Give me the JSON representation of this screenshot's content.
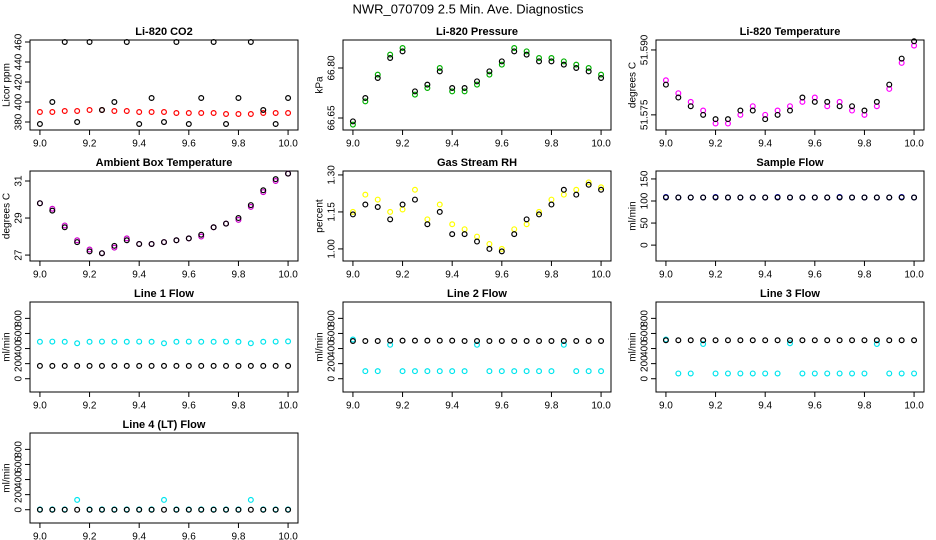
{
  "title": "NWR_070709  2.5 Min. Ave. Diagnostics",
  "chart_data": [
    {
      "type": "scatter",
      "title": "Li-820 CO2",
      "y_label": "Licor ppm",
      "x": [
        9.0,
        9.05,
        9.1,
        9.15,
        9.2,
        9.25,
        9.3,
        9.35,
        9.4,
        9.45,
        9.5,
        9.55,
        9.6,
        9.65,
        9.7,
        9.75,
        9.8,
        9.85,
        9.9,
        9.95,
        10.0
      ],
      "xlim": [
        8.96,
        10.04
      ],
      "xticks": [
        {
          "value": 9,
          "label": "9.0"
        },
        9.2,
        9.4,
        9.6,
        9.8,
        {
          "value": 10,
          "label": "10.0"
        }
      ],
      "ylim": [
        372,
        462
      ],
      "yticks": [
        380,
        400,
        420,
        440,
        460
      ],
      "series": [
        {
          "color": "#ff0000",
          "values": [
            390,
            390,
            391,
            391,
            392,
            392,
            391,
            391,
            390,
            390,
            390,
            389,
            389,
            389,
            389,
            388,
            388,
            388,
            389,
            389,
            389
          ]
        },
        {
          "color": "#000000",
          "values": [
            378,
            400,
            460,
            380,
            460,
            392,
            400,
            460,
            378,
            404,
            380,
            460,
            378,
            404,
            460,
            378,
            404,
            460,
            392,
            378,
            404
          ]
        }
      ]
    },
    {
      "type": "scatter",
      "title": "Li-820 Pressure",
      "y_label": "kPa",
      "x": [
        9.0,
        9.05,
        9.1,
        9.15,
        9.2,
        9.25,
        9.3,
        9.35,
        9.4,
        9.45,
        9.5,
        9.55,
        9.6,
        9.65,
        9.7,
        9.75,
        9.8,
        9.85,
        9.9,
        9.95,
        10.0
      ],
      "xlim": [
        8.96,
        10.04
      ],
      "xticks": [
        {
          "value": 9,
          "label": "9.0"
        },
        9.2,
        9.4,
        9.6,
        9.8,
        {
          "value": 10,
          "label": "10.0"
        }
      ],
      "ylim": [
        66.614,
        66.884
      ],
      "yticks": [
        66.65,
        {
          "value": 66.8,
          "label": "66.80"
        }
      ],
      "series": [
        {
          "color": "#00b000",
          "values": [
            66.63,
            66.7,
            66.78,
            66.84,
            66.86,
            66.72,
            66.74,
            66.8,
            66.73,
            66.73,
            66.75,
            66.78,
            66.81,
            66.86,
            66.85,
            66.83,
            66.83,
            66.82,
            66.81,
            66.8,
            66.78
          ]
        },
        {
          "color": "#000000",
          "values": [
            66.64,
            66.71,
            66.77,
            66.83,
            66.85,
            66.73,
            66.75,
            66.79,
            66.74,
            66.74,
            66.76,
            66.79,
            66.82,
            66.85,
            66.84,
            66.82,
            66.82,
            66.81,
            66.8,
            66.79,
            66.77
          ]
        }
      ]
    },
    {
      "type": "scatter",
      "title": "Li-820 Temperature",
      "y_label": "degrees C",
      "x": [
        9.0,
        9.05,
        9.1,
        9.15,
        9.2,
        9.25,
        9.3,
        9.35,
        9.4,
        9.45,
        9.5,
        9.55,
        9.6,
        9.65,
        9.7,
        9.75,
        9.8,
        9.85,
        9.9,
        9.95,
        10.0
      ],
      "xlim": [
        8.96,
        10.04
      ],
      "xticks": [
        {
          "value": 9,
          "label": "9.0"
        },
        9.2,
        9.4,
        9.6,
        9.8,
        {
          "value": 10,
          "label": "10.0"
        }
      ],
      "ylim": [
        51.5715,
        51.5923
      ],
      "yticks": [
        51.575,
        {
          "value": 51.59,
          "label": "51.590"
        }
      ],
      "series": [
        {
          "color": "#ff00ff",
          "values": [
            51.583,
            51.58,
            51.578,
            51.576,
            51.573,
            51.573,
            51.575,
            51.577,
            51.575,
            51.576,
            51.577,
            51.578,
            51.579,
            51.577,
            51.578,
            51.576,
            51.575,
            51.577,
            51.581,
            51.587,
            51.591
          ]
        },
        {
          "color": "#000000",
          "values": [
            51.582,
            51.579,
            51.577,
            51.575,
            51.574,
            51.574,
            51.576,
            51.576,
            51.574,
            51.575,
            51.576,
            51.579,
            51.578,
            51.578,
            51.577,
            51.577,
            51.576,
            51.578,
            51.582,
            51.588,
            51.592
          ]
        }
      ]
    },
    {
      "type": "scatter",
      "title": "Ambient Box Temperature",
      "y_label": "degrees C",
      "x": [
        9.0,
        9.05,
        9.1,
        9.15,
        9.2,
        9.25,
        9.3,
        9.35,
        9.4,
        9.45,
        9.5,
        9.55,
        9.6,
        9.65,
        9.7,
        9.75,
        9.8,
        9.85,
        9.9,
        9.95,
        10.0
      ],
      "xlim": [
        8.96,
        10.04
      ],
      "xticks": [
        {
          "value": 9,
          "label": "9.0"
        },
        9.2,
        9.4,
        9.6,
        9.8,
        {
          "value": 10,
          "label": "10.0"
        }
      ],
      "ylim": [
        26.68,
        31.54
      ],
      "yticks": [
        27,
        29,
        31
      ],
      "series": [
        {
          "color": "#cc00cc",
          "values": [
            29.8,
            29.5,
            28.6,
            27.8,
            27.3,
            27.1,
            27.4,
            27.9,
            27.6,
            27.6,
            27.7,
            27.8,
            27.9,
            28.0,
            28.5,
            28.7,
            28.9,
            29.6,
            30.4,
            31.0,
            31.4
          ]
        },
        {
          "color": "#000000",
          "values": [
            29.8,
            29.4,
            28.5,
            27.7,
            27.2,
            27.1,
            27.5,
            27.8,
            27.6,
            27.6,
            27.7,
            27.8,
            27.9,
            28.1,
            28.5,
            28.7,
            29.0,
            29.7,
            30.5,
            31.1,
            31.4
          ]
        }
      ]
    },
    {
      "type": "scatter",
      "title": "Gas Stream RH",
      "y_label": "percent",
      "x": [
        9.0,
        9.05,
        9.1,
        9.15,
        9.2,
        9.25,
        9.3,
        9.35,
        9.4,
        9.45,
        9.5,
        9.55,
        9.6,
        9.65,
        9.7,
        9.75,
        9.8,
        9.85,
        9.9,
        9.95,
        10.0
      ],
      "xlim": [
        8.96,
        10.04
      ],
      "xticks": [
        {
          "value": 9,
          "label": "9.0"
        },
        9.2,
        9.4,
        9.6,
        9.8,
        {
          "value": 10,
          "label": "10.0"
        }
      ],
      "ylim": [
        0.951,
        1.316
      ],
      "yticks": [
        {
          "value": 1,
          "label": "1.00"
        },
        1.15,
        {
          "value": 1.3,
          "label": "1.30"
        }
      ],
      "series": [
        {
          "color": "#ffff00",
          "values": [
            1.15,
            1.22,
            1.2,
            1.15,
            1.16,
            1.24,
            1.12,
            1.18,
            1.1,
            1.08,
            1.05,
            1.02,
            1.0,
            1.08,
            1.1,
            1.15,
            1.2,
            1.22,
            1.24,
            1.27,
            1.25
          ]
        },
        {
          "color": "#000000",
          "values": [
            1.14,
            1.18,
            1.17,
            1.12,
            1.18,
            1.2,
            1.1,
            1.15,
            1.06,
            1.06,
            1.03,
            1.0,
            0.99,
            1.06,
            1.12,
            1.14,
            1.18,
            1.24,
            1.22,
            1.26,
            1.24
          ]
        }
      ]
    },
    {
      "type": "scatter",
      "title": "Sample Flow",
      "y_label": "ml/min",
      "x": [
        9.0,
        9.05,
        9.1,
        9.15,
        9.2,
        9.25,
        9.3,
        9.35,
        9.4,
        9.45,
        9.5,
        9.55,
        9.6,
        9.65,
        9.7,
        9.75,
        9.8,
        9.85,
        9.9,
        9.95,
        10.0
      ],
      "xlim": [
        8.96,
        10.04
      ],
      "xticks": [
        {
          "value": 9,
          "label": "9.0"
        },
        9.2,
        9.4,
        9.6,
        9.8,
        {
          "value": 10,
          "label": "10.0"
        }
      ],
      "ylim": [
        -36,
        168
      ],
      "yticks": [
        0,
        50,
        100,
        150
      ],
      "series": [
        {
          "color": "#0000cc",
          "values": [
            109,
            108,
            108,
            108,
            109,
            108,
            108,
            108,
            108,
            109,
            108,
            108,
            108,
            108,
            109,
            108,
            108,
            108,
            108,
            109,
            108
          ]
        },
        {
          "color": "#000000",
          "values": [
            108,
            108,
            108,
            108,
            108,
            108,
            108,
            108,
            108,
            108,
            108,
            108,
            108,
            108,
            108,
            108,
            108,
            108,
            108,
            108,
            108
          ]
        }
      ]
    },
    {
      "type": "scatter",
      "title": "Line 1 Flow",
      "y_label": "ml/min",
      "x": [
        9.0,
        9.05,
        9.1,
        9.15,
        9.2,
        9.25,
        9.3,
        9.35,
        9.4,
        9.45,
        9.5,
        9.55,
        9.6,
        9.65,
        9.7,
        9.75,
        9.8,
        9.85,
        9.9,
        9.95,
        10.0
      ],
      "xlim": [
        8.96,
        10.04
      ],
      "xticks": [
        {
          "value": 9,
          "label": "9.0"
        },
        9.2,
        9.4,
        9.6,
        9.8,
        {
          "value": 10,
          "label": "10.0"
        }
      ],
      "ylim": [
        -176,
        1017
      ],
      "yticks": [
        0,
        200,
        400,
        600,
        800
      ],
      "series": [
        {
          "color": "#00e5ee",
          "values": [
            490,
            492,
            490,
            470,
            490,
            492,
            490,
            490,
            492,
            490,
            470,
            490,
            492,
            490,
            490,
            492,
            490,
            470,
            490,
            492,
            495
          ]
        },
        {
          "color": "#000000",
          "values": [
            170,
            170,
            170,
            170,
            170,
            170,
            170,
            170,
            170,
            170,
            170,
            170,
            170,
            170,
            170,
            170,
            170,
            170,
            170,
            170,
            170
          ]
        }
      ]
    },
    {
      "type": "scatter",
      "title": "Line 2 Flow",
      "y_label": "ml/min",
      "x": [
        9.0,
        9.05,
        9.1,
        9.15,
        9.2,
        9.25,
        9.3,
        9.35,
        9.4,
        9.45,
        9.5,
        9.55,
        9.6,
        9.65,
        9.7,
        9.75,
        9.8,
        9.85,
        9.9,
        9.95,
        10.0
      ],
      "xlim": [
        8.96,
        10.04
      ],
      "xticks": [
        {
          "value": 9,
          "label": "9.0"
        },
        9.2,
        9.4,
        9.6,
        9.8,
        {
          "value": 10,
          "label": "10.0"
        }
      ],
      "ylim": [
        -176,
        1017
      ],
      "yticks": [
        0,
        200,
        400,
        600,
        800
      ],
      "series": [
        {
          "color": "#00e5ee",
          "values": [
            520,
            100,
            100,
            450,
            100,
            100,
            100,
            100,
            100,
            100,
            450,
            100,
            100,
            100,
            100,
            100,
            100,
            450,
            100,
            100,
            100
          ]
        },
        {
          "color": "#000000",
          "values": [
            500,
            500,
            500,
            505,
            505,
            505,
            505,
            505,
            505,
            500,
            500,
            500,
            500,
            500,
            500,
            500,
            500,
            500,
            500,
            500,
            500
          ]
        }
      ]
    },
    {
      "type": "scatter",
      "title": "Line 3 Flow",
      "y_label": "ml/min",
      "x": [
        9.0,
        9.05,
        9.1,
        9.15,
        9.2,
        9.25,
        9.3,
        9.35,
        9.4,
        9.45,
        9.5,
        9.55,
        9.6,
        9.65,
        9.7,
        9.75,
        9.8,
        9.85,
        9.9,
        9.95,
        10.0
      ],
      "xlim": [
        8.96,
        10.04
      ],
      "xticks": [
        {
          "value": 9,
          "label": "9.0"
        },
        9.2,
        9.4,
        9.6,
        9.8,
        {
          "value": 10,
          "label": "10.0"
        }
      ],
      "ylim": [
        -176,
        1017
      ],
      "yticks": [
        0,
        200,
        400,
        600,
        800
      ],
      "series": [
        {
          "color": "#00e5ee",
          "values": [
            520,
            70,
            70,
            460,
            70,
            70,
            70,
            70,
            70,
            70,
            470,
            70,
            70,
            70,
            70,
            70,
            70,
            460,
            70,
            70,
            70
          ]
        },
        {
          "color": "#000000",
          "values": [
            510,
            510,
            510,
            510,
            510,
            510,
            510,
            510,
            510,
            510,
            510,
            510,
            510,
            510,
            510,
            510,
            510,
            510,
            510,
            510,
            510
          ]
        }
      ]
    },
    {
      "type": "scatter",
      "title": "Line 4 (LT) Flow",
      "y_label": "ml/min",
      "x": [
        9.0,
        9.05,
        9.1,
        9.15,
        9.2,
        9.25,
        9.3,
        9.35,
        9.4,
        9.45,
        9.5,
        9.55,
        9.6,
        9.65,
        9.7,
        9.75,
        9.8,
        9.85,
        9.9,
        9.95,
        10.0
      ],
      "xlim": [
        8.96,
        10.04
      ],
      "xticks": [
        {
          "value": 9,
          "label": "9.0"
        },
        9.2,
        9.4,
        9.6,
        9.8,
        {
          "value": 10,
          "label": "10.0"
        }
      ],
      "ylim": [
        -176,
        1017
      ],
      "yticks": [
        0,
        200,
        400,
        600,
        800
      ],
      "series": [
        {
          "color": "#00e5ee",
          "values": [
            5,
            5,
            5,
            130,
            5,
            5,
            5,
            5,
            5,
            5,
            130,
            5,
            5,
            5,
            5,
            5,
            5,
            130,
            5,
            5,
            5
          ]
        },
        {
          "color": "#000000",
          "values": [
            0,
            0,
            0,
            0,
            0,
            0,
            0,
            0,
            0,
            0,
            0,
            0,
            0,
            0,
            0,
            0,
            0,
            0,
            0,
            0,
            0
          ]
        }
      ]
    }
  ]
}
